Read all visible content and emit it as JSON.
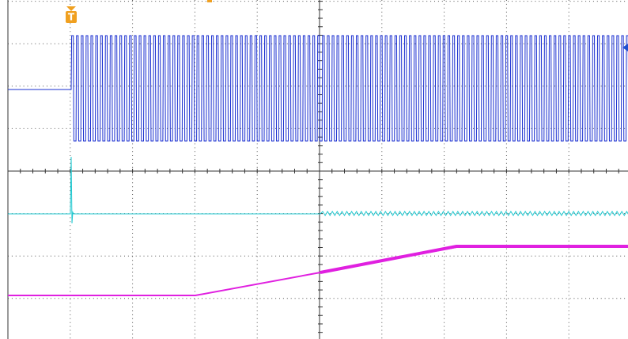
{
  "trigger": {
    "label": "T"
  }
}
